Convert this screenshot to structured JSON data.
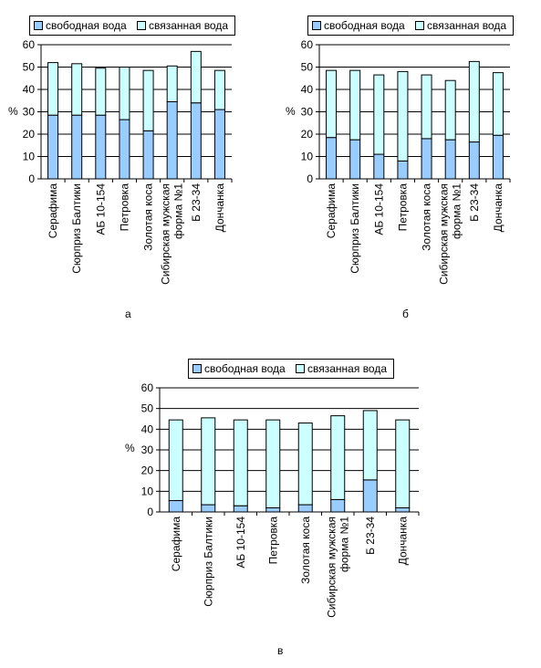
{
  "legend": {
    "free_label": "свободная вода",
    "bound_label": "связанная вода"
  },
  "colors": {
    "free": "#99ccff",
    "bound": "#ccffff",
    "border": "#000000",
    "grid": "#000000"
  },
  "panels": [
    {
      "letter": "а"
    },
    {
      "letter": "б"
    },
    {
      "letter": "в"
    }
  ],
  "chart_data": [
    {
      "type": "bar",
      "stacked": true,
      "ylabel": "%",
      "ylim": [
        0,
        60
      ],
      "yticks": [
        0,
        10,
        20,
        30,
        40,
        50,
        60
      ],
      "grid": true,
      "legend_position": "top",
      "categories": [
        [
          "Серафима"
        ],
        [
          "Сюрприз Балтики"
        ],
        [
          "АБ 10-154"
        ],
        [
          "Петровка"
        ],
        [
          "Золотая коса"
        ],
        [
          "Сибирская мужская",
          "форма №1"
        ],
        [
          "Б 23-34"
        ],
        [
          "Дончанка"
        ]
      ],
      "series": [
        {
          "name": "свободная вода",
          "values": [
            28.5,
            28.5,
            28.5,
            26.5,
            21.5,
            34.5,
            34,
            31
          ]
        },
        {
          "name": "связанная вода",
          "values": [
            23.5,
            23,
            21,
            23.5,
            27,
            16,
            23,
            17.5
          ]
        }
      ]
    },
    {
      "type": "bar",
      "stacked": true,
      "ylabel": "%",
      "ylim": [
        0,
        60
      ],
      "yticks": [
        0,
        10,
        20,
        30,
        40,
        50,
        60
      ],
      "grid": true,
      "legend_position": "top",
      "categories": [
        [
          "Серафима"
        ],
        [
          "Сюрприз Балтики"
        ],
        [
          "АБ 10-154"
        ],
        [
          "Петровка"
        ],
        [
          "Золотая коса"
        ],
        [
          "Сибирская мужская",
          "форма №1"
        ],
        [
          "Б 23-34"
        ],
        [
          "Дончанка"
        ]
      ],
      "series": [
        {
          "name": "свободная вода",
          "values": [
            18.5,
            17.5,
            11,
            8,
            18,
            17.5,
            16.5,
            19.5
          ]
        },
        {
          "name": "связанная вода",
          "values": [
            30,
            31,
            35.5,
            40,
            28.5,
            26.5,
            36,
            28
          ]
        }
      ]
    },
    {
      "type": "bar",
      "stacked": true,
      "ylabel": "%",
      "ylim": [
        0,
        60
      ],
      "yticks": [
        0,
        10,
        20,
        30,
        40,
        50,
        60
      ],
      "grid": true,
      "legend_position": "top",
      "categories": [
        [
          "Серафима"
        ],
        [
          "Сюрприз Балтики"
        ],
        [
          "АБ 10-154"
        ],
        [
          "Петровка"
        ],
        [
          "Золотая коса"
        ],
        [
          "Сибирская мужская",
          "форма №1"
        ],
        [
          "Б 23-34"
        ],
        [
          "Дончанка"
        ]
      ],
      "series": [
        {
          "name": "свободная вода",
          "values": [
            5.5,
            3.5,
            3,
            2,
            3.5,
            6,
            15.5,
            2
          ]
        },
        {
          "name": "связанная вода",
          "values": [
            39,
            42,
            41.5,
            42.5,
            39.5,
            40.5,
            33.5,
            42.5
          ]
        }
      ]
    }
  ]
}
